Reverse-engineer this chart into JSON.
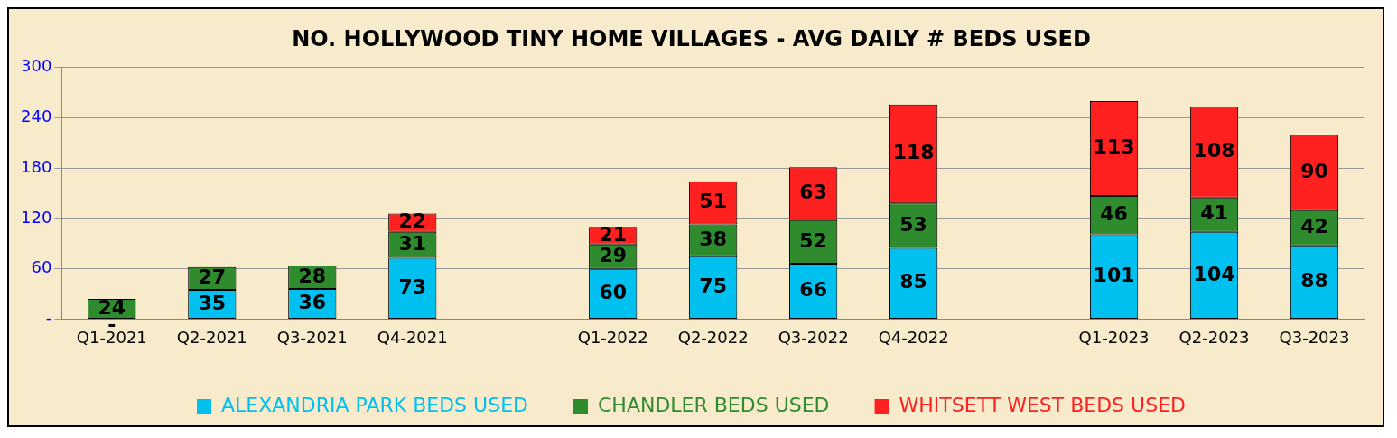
{
  "chart_data": {
    "type": "bar",
    "title": "NO. HOLLYWOOD TINY HOME VILLAGES - AVG DAILY # BEDS USED",
    "categories": [
      "Q1-2021",
      "Q2-2021",
      "Q3-2021",
      "Q4-2021",
      null,
      "Q1-2022",
      "Q2-2022",
      "Q3-2022",
      "Q4-2022",
      null,
      "Q1-2023",
      "Q2-2023",
      "Q3-2023"
    ],
    "stacked": true,
    "series": [
      {
        "name": "ALEXANDRIA PARK BEDS USED",
        "color": "#00c0f0",
        "values": [
          0,
          35,
          36,
          73,
          null,
          60,
          75,
          66,
          85,
          null,
          101,
          104,
          88
        ],
        "value_labels": [
          "-",
          "35",
          "36",
          "73",
          null,
          "60",
          "75",
          "66",
          "85",
          null,
          "101",
          "104",
          "88"
        ]
      },
      {
        "name": "CHANDLER BEDS USED",
        "color": "#2e8b2e",
        "values": [
          24,
          27,
          28,
          31,
          null,
          29,
          38,
          52,
          53,
          null,
          46,
          41,
          42
        ],
        "value_labels": [
          "24",
          "27",
          "28",
          "31",
          null,
          "29",
          "38",
          "52",
          "53",
          null,
          "46",
          "41",
          "42"
        ]
      },
      {
        "name": "WHITSETT WEST BEDS USED",
        "color": "#ff2020",
        "values": [
          null,
          null,
          null,
          22,
          null,
          21,
          51,
          63,
          118,
          null,
          113,
          108,
          90
        ],
        "value_labels": [
          null,
          null,
          null,
          "22",
          null,
          "21",
          "51",
          "63",
          "118",
          null,
          "113",
          "108",
          "90"
        ]
      }
    ],
    "ylim": [
      0,
      300
    ],
    "yticks": [
      {
        "value": 0,
        "label": "-"
      },
      60,
      120,
      180,
      240,
      300
    ],
    "grid": "y",
    "legend": "bottom"
  }
}
